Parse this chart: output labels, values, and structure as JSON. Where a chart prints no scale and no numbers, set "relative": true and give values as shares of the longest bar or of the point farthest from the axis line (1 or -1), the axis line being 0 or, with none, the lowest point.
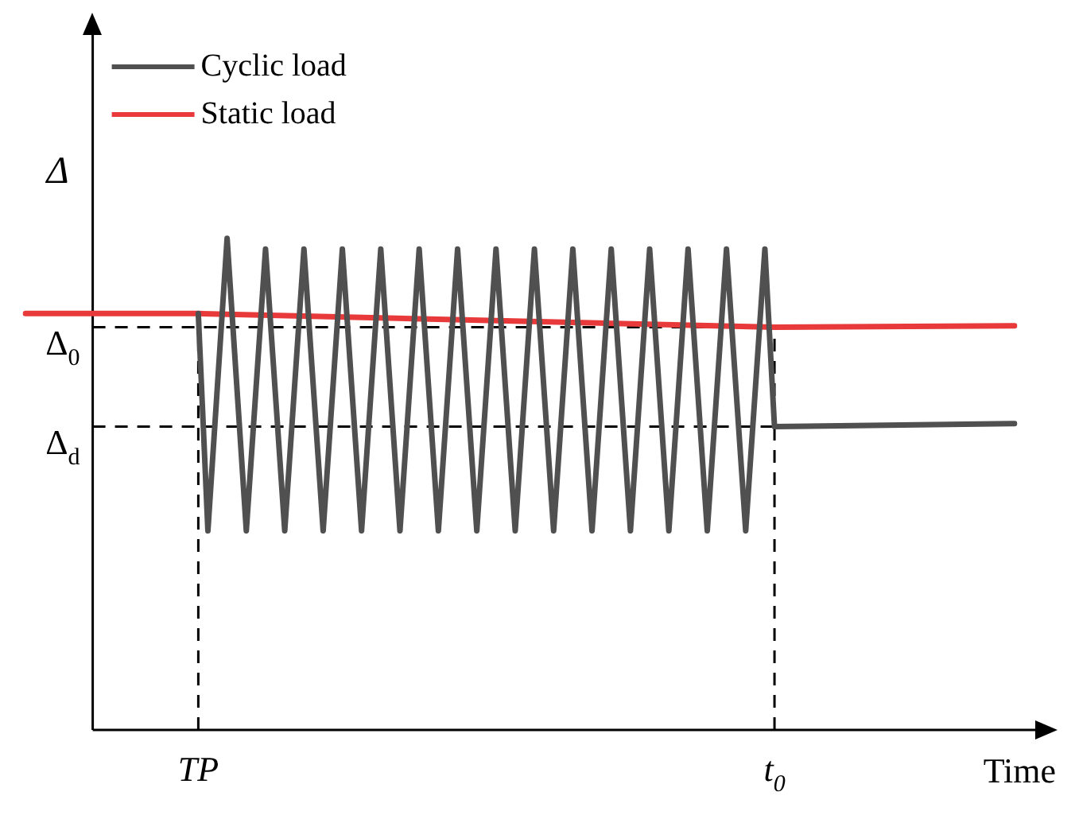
{
  "chart_data": {
    "type": "line",
    "xlabel": "Time",
    "ylabel": "Δ",
    "relative": true,
    "legend": "top left",
    "line_style": "solid",
    "marker": "none",
    "categories": [
      null,
      null,
      null,
      null,
      null,
      null,
      null,
      null,
      null,
      null,
      null,
      null,
      null,
      null,
      null,
      null,
      null,
      null,
      "TP",
      null,
      null,
      null,
      null,
      null,
      null,
      null,
      null,
      null,
      null,
      null,
      null,
      null,
      null,
      null,
      null,
      null,
      null,
      null,
      null,
      null,
      null,
      null,
      null,
      null,
      null,
      null,
      null,
      null,
      null,
      null,
      null,
      null,
      null,
      null,
      null,
      null,
      null,
      null,
      null,
      null,
      null,
      null,
      null,
      null,
      null,
      null,
      null,
      null,
      null,
      null,
      null,
      null,
      null,
      null,
      null,
      null,
      null,
      null,
      "t$_{0}$",
      null,
      null,
      null,
      null,
      null,
      null,
      null,
      null,
      null,
      null,
      null,
      null,
      null,
      null,
      null,
      null,
      null,
      null,
      null,
      null,
      null,
      null,
      null,
      null,
      null
    ],
    "ref_lines": [
      {
        "axis": "x",
        "value": "TP",
        "line_style": "dashed",
        "color": "#000000"
      },
      {
        "axis": "x",
        "value": "t$_{0}$",
        "line_style": "dashed",
        "color": "#000000"
      },
      {
        "axis": "y",
        "value": 0.819,
        "label": "Δ$_{0}$",
        "line_style": "dashed",
        "color": "#000000"
      },
      {
        "axis": "y",
        "value": 0.617,
        "label": "Δ$_{d}$",
        "line_style": "dashed",
        "color": "#000000"
      }
    ],
    "series": [
      {
        "name": "Cyclic load",
        "color": "#505050",
        "values": [
          null,
          null,
          null,
          null,
          null,
          null,
          null,
          null,
          null,
          null,
          null,
          null,
          null,
          null,
          null,
          null,
          null,
          null,
          0.847,
          0.405,
          null,
          1,
          null,
          0.405,
          null,
          0.978,
          null,
          0.405,
          null,
          0.978,
          null,
          0.405,
          null,
          0.978,
          null,
          0.405,
          null,
          0.978,
          null,
          0.405,
          null,
          0.978,
          null,
          0.405,
          null,
          0.978,
          null,
          0.405,
          null,
          0.978,
          null,
          0.405,
          null,
          0.978,
          null,
          0.405,
          null,
          0.978,
          null,
          0.405,
          null,
          0.978,
          null,
          0.405,
          null,
          0.978,
          null,
          0.405,
          null,
          0.978,
          null,
          0.405,
          null,
          0.978,
          null,
          0.405,
          null,
          0.978,
          0.617,
          null,
          null,
          null,
          null,
          null,
          null,
          null,
          null,
          null,
          null,
          null,
          null,
          null,
          null,
          null,
          null,
          null,
          null,
          null,
          null,
          null,
          null,
          null,
          null,
          0.623
        ]
      },
      {
        "name": "Static load",
        "color": "#e83a3a",
        "values": [
          0.847,
          null,
          null,
          null,
          null,
          null,
          null,
          null,
          null,
          null,
          null,
          null,
          null,
          null,
          null,
          null,
          null,
          null,
          0.847,
          null,
          null,
          null,
          null,
          null,
          null,
          null,
          null,
          null,
          null,
          null,
          null,
          null,
          null,
          null,
          null,
          null,
          null,
          null,
          null,
          null,
          null,
          null,
          null,
          null,
          null,
          null,
          null,
          null,
          null,
          null,
          null,
          null,
          null,
          null,
          null,
          null,
          null,
          null,
          null,
          null,
          null,
          null,
          null,
          null,
          null,
          null,
          null,
          null,
          null,
          null,
          null,
          null,
          null,
          null,
          null,
          null,
          null,
          null,
          0.819,
          null,
          null,
          null,
          null,
          null,
          null,
          null,
          null,
          null,
          null,
          null,
          null,
          null,
          null,
          null,
          null,
          null,
          null,
          null,
          null,
          null,
          null,
          null,
          null,
          0.822
        ]
      }
    ]
  }
}
